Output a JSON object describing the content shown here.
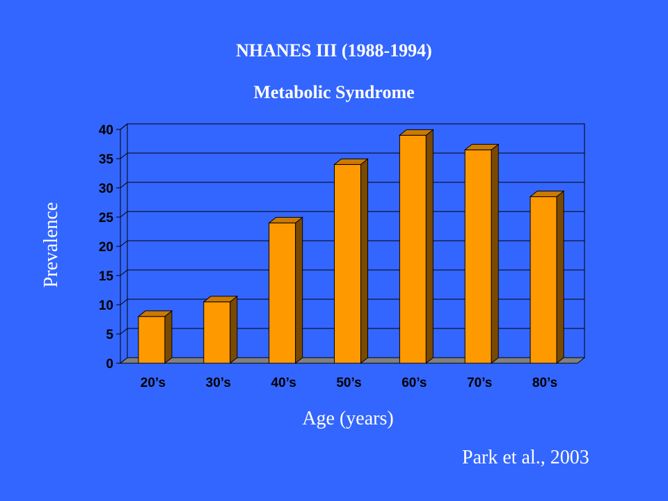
{
  "chart_data": {
    "type": "bar",
    "title": "NHANES III  (1988-1994)",
    "subtitle": "Metabolic Syndrome",
    "xlabel": "Age (years)",
    "ylabel": "Prevalence",
    "categories": [
      "20’s",
      "30’s",
      "40’s",
      "50’s",
      "60’s",
      "70’s",
      "80’s"
    ],
    "values": [
      8,
      10.5,
      24,
      34,
      39,
      36.5,
      28.5
    ],
    "ylim": [
      0,
      40
    ],
    "yticks": [
      0,
      5,
      10,
      15,
      20,
      25,
      30,
      35,
      40
    ],
    "grid": true,
    "legend": "none",
    "style": "3d",
    "colors": {
      "bar_front": "#ff9900",
      "bar_side": "#7a4a00",
      "bar_top": "#cc7a00",
      "plot_back": "#3366ff",
      "floor": "#808080",
      "gridline": "#000000"
    }
  },
  "annotation": "Park et al., 2003"
}
